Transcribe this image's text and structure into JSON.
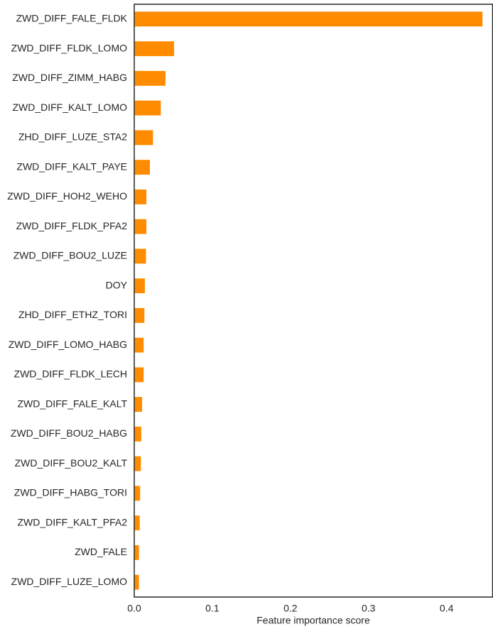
{
  "chart_data": {
    "type": "barh",
    "xlabel": "Feature importance score",
    "categories": [
      "ZWD_DIFF_FALE_FLDK",
      "ZWD_DIFF_FLDK_LOMO",
      "ZWD_DIFF_ZIMM_HABG",
      "ZWD_DIFF_KALT_LOMO",
      "ZHD_DIFF_LUZE_STA2",
      "ZWD_DIFF_KALT_PAYE",
      "ZWD_DIFF_HOH2_WEHO",
      "ZWD_DIFF_FLDK_PFA2",
      "ZWD_DIFF_BOU2_LUZE",
      "DOY",
      "ZHD_DIFF_ETHZ_TORI",
      "ZWD_DIFF_LOMO_HABG",
      "ZWD_DIFF_FLDK_LECH",
      "ZWD_DIFF_FALE_KALT",
      "ZWD_DIFF_BOU2_HABG",
      "ZWD_DIFF_BOU2_KALT",
      "ZWD_DIFF_HABG_TORI",
      "ZWD_DIFF_KALT_PFA2",
      "ZWD_FALE",
      "ZWD_DIFF_LUZE_LOMO"
    ],
    "values": [
      0.446,
      0.051,
      0.04,
      0.034,
      0.024,
      0.02,
      0.0155,
      0.0155,
      0.015,
      0.0136,
      0.013,
      0.012,
      0.012,
      0.01,
      0.009,
      0.0085,
      0.0075,
      0.007,
      0.006,
      0.006
    ],
    "color": "#ff8c00",
    "xlim": [
      0,
      0.459
    ],
    "xticks": [
      {
        "value": 0,
        "label": "0.0"
      },
      0.1,
      0.2,
      0.3,
      0.4
    ],
    "grid": false
  }
}
